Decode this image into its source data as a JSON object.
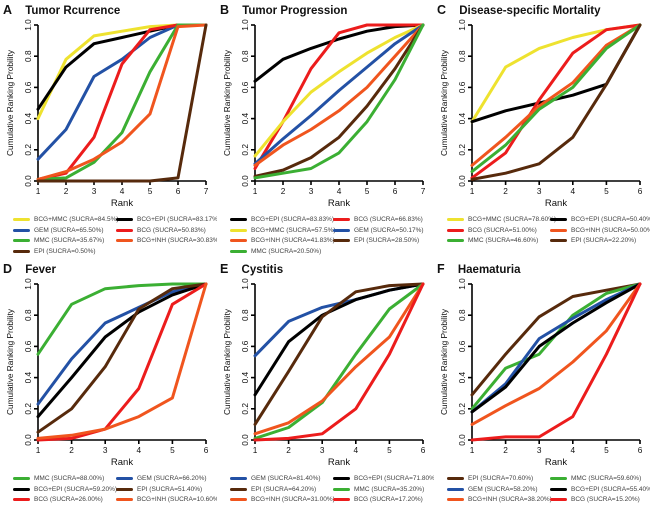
{
  "figure": {
    "ylabel": "Cumulative Ranking Probility",
    "xlabel": "Rank",
    "yticks": [
      "0.0",
      "0.2",
      "0.4",
      "0.6",
      "0.8",
      "1.0"
    ],
    "background": "#ffffff",
    "axis_color": "#000000"
  },
  "colors": {
    "yellow": "#EEE22F",
    "black": "#000000",
    "blue": "#2351A5",
    "red": "#EC1C1C",
    "green": "#3BAF33",
    "orange": "#F0551E",
    "brown": "#572A0C"
  },
  "chart_data": [
    {
      "type": "line",
      "letter": "A",
      "title": "Tumor Rcurrence",
      "xlabel": "Rank",
      "ylabel": "Cumulative Ranking Probility",
      "x": [
        1,
        2,
        3,
        4,
        5,
        6,
        7
      ],
      "ylim": [
        0,
        1
      ],
      "legend_position": "below",
      "series": [
        {
          "name": "BCG+MMC",
          "legend": "BCG+MMC (SUCRA=84.5%)",
          "color": "#EEE22F",
          "values": [
            0.4,
            0.78,
            0.93,
            0.96,
            0.99,
            1.0,
            1.0
          ]
        },
        {
          "name": "BCG+EPI",
          "legend": "BCG+EPI (SUCRA=83.17%)",
          "color": "#000000",
          "values": [
            0.46,
            0.73,
            0.88,
            0.92,
            0.96,
            1.0,
            1.0
          ]
        },
        {
          "name": "GEM",
          "legend": "GEM (SUCRA=65.50%)",
          "color": "#2351A5",
          "values": [
            0.14,
            0.33,
            0.67,
            0.78,
            0.92,
            1.0,
            1.0
          ]
        },
        {
          "name": "BCG",
          "legend": "BCG (SUCRA=50.83%)",
          "color": "#EC1C1C",
          "values": [
            0.01,
            0.05,
            0.28,
            0.75,
            0.97,
            1.0,
            1.0
          ]
        },
        {
          "name": "MMC",
          "legend": "MMC (SUCRA=35.67%)",
          "color": "#3BAF33",
          "values": [
            0.01,
            0.02,
            0.12,
            0.31,
            0.7,
            1.0,
            1.0
          ]
        },
        {
          "name": "BCG+INH",
          "legend": "BCG+INH (SUCRA=30.83%)",
          "color": "#F0551E",
          "values": [
            0.01,
            0.06,
            0.14,
            0.25,
            0.43,
            0.99,
            1.0
          ]
        },
        {
          "name": "EPI",
          "legend": "EPI (SUCRA=0.50%)",
          "color": "#572A0C",
          "values": [
            0.0,
            0.0,
            0.0,
            0.0,
            0.0,
            0.02,
            1.0
          ]
        }
      ]
    },
    {
      "type": "line",
      "letter": "B",
      "title": "Tumor Progression",
      "xlabel": "Rank",
      "ylabel": "Cumulative Ranking Probility",
      "x": [
        1,
        2,
        3,
        4,
        5,
        6,
        7
      ],
      "ylim": [
        0,
        1
      ],
      "legend_position": "below",
      "series": [
        {
          "name": "BCG+EPI",
          "legend": "BCG+EPI (SUCRA=83.83%)",
          "color": "#000000",
          "values": [
            0.64,
            0.78,
            0.85,
            0.91,
            0.96,
            0.99,
            1.0
          ]
        },
        {
          "name": "BCG",
          "legend": "BCG (SUCRA=66.83%)",
          "color": "#EC1C1C",
          "values": [
            0.08,
            0.38,
            0.72,
            0.95,
            1.0,
            1.0,
            1.0
          ]
        },
        {
          "name": "BCG+MMC",
          "legend": "BCG+MMC (SUCRA=57.5%)",
          "color": "#EEE22F",
          "values": [
            0.16,
            0.38,
            0.57,
            0.7,
            0.82,
            0.92,
            1.0
          ]
        },
        {
          "name": "GEM",
          "legend": "GEM (SUCRA=50.17%)",
          "color": "#2351A5",
          "values": [
            0.11,
            0.27,
            0.42,
            0.58,
            0.73,
            0.88,
            1.0
          ]
        },
        {
          "name": "BCG+INH",
          "legend": "BCG+INH (SUCRA=41.83%)",
          "color": "#F0551E",
          "values": [
            0.1,
            0.23,
            0.33,
            0.45,
            0.6,
            0.8,
            1.0
          ]
        },
        {
          "name": "EPI",
          "legend": "EPI (SUCRA=28.50%)",
          "color": "#572A0C",
          "values": [
            0.03,
            0.07,
            0.15,
            0.28,
            0.48,
            0.72,
            1.0
          ]
        },
        {
          "name": "MMC",
          "legend": "MMC (SUCRA=20.50%)",
          "color": "#3BAF33",
          "values": [
            0.02,
            0.05,
            0.08,
            0.18,
            0.38,
            0.65,
            1.0
          ]
        }
      ]
    },
    {
      "type": "line",
      "letter": "C",
      "title": "Disease-specific Mortality",
      "xlabel": "Rank",
      "ylabel": "Cumulative Ranking Probility",
      "x": [
        1,
        2,
        3,
        4,
        5,
        6
      ],
      "ylim": [
        0,
        1
      ],
      "legend_position": "below",
      "series": [
        {
          "name": "BCG+MMC",
          "legend": "BCG+MMC (SUCRA=78.60%)",
          "color": "#EEE22F",
          "values": [
            0.38,
            0.73,
            0.85,
            0.92,
            0.97,
            1.0
          ]
        },
        {
          "name": "BCG+EPI",
          "legend": "BCG+EPI (SUCRA=50.40%)",
          "color": "#000000",
          "values": [
            0.38,
            0.45,
            0.5,
            0.55,
            0.62,
            1.0
          ]
        },
        {
          "name": "BCG",
          "legend": "BCG (SUCRA=51.00%)",
          "color": "#EC1C1C",
          "values": [
            0.02,
            0.18,
            0.52,
            0.82,
            0.97,
            1.0
          ]
        },
        {
          "name": "BCG+INH",
          "legend": "BCG+INH (SUCRA=50.00%)",
          "color": "#F0551E",
          "values": [
            0.1,
            0.28,
            0.48,
            0.63,
            0.87,
            1.0
          ]
        },
        {
          "name": "MMC",
          "legend": "MMC (SUCRA=46.60%)",
          "color": "#3BAF33",
          "values": [
            0.06,
            0.23,
            0.46,
            0.6,
            0.85,
            1.0
          ]
        },
        {
          "name": "EPI",
          "legend": "EPI (SUCRA=22.20%)",
          "color": "#572A0C",
          "values": [
            0.01,
            0.05,
            0.11,
            0.28,
            0.62,
            1.0
          ]
        }
      ]
    },
    {
      "type": "line",
      "letter": "D",
      "title": "Fever",
      "xlabel": "Rank",
      "ylabel": "Cumulative Ranking Probility",
      "x": [
        1,
        2,
        3,
        4,
        5,
        6
      ],
      "ylim": [
        0,
        1
      ],
      "legend_position": "below",
      "series": [
        {
          "name": "MMC",
          "legend": "MMC (SUCRA=88.00%)",
          "color": "#3BAF33",
          "values": [
            0.55,
            0.87,
            0.97,
            0.99,
            1.0,
            1.0
          ]
        },
        {
          "name": "GEM",
          "legend": "GEM (SUCRA=66.20%)",
          "color": "#2351A5",
          "values": [
            0.23,
            0.52,
            0.75,
            0.85,
            0.95,
            1.0
          ]
        },
        {
          "name": "BCG+EPI",
          "legend": "BCG+EPI (SUCRA=59.20%)",
          "color": "#000000",
          "values": [
            0.15,
            0.4,
            0.66,
            0.82,
            0.93,
            1.0
          ]
        },
        {
          "name": "EPI",
          "legend": "EPI (SUCRA=51.40%)",
          "color": "#572A0C",
          "values": [
            0.05,
            0.2,
            0.47,
            0.84,
            0.97,
            1.0
          ]
        },
        {
          "name": "BCG",
          "legend": "BCG (SUCRA=26.00%)",
          "color": "#EC1C1C",
          "values": [
            0.0,
            0.01,
            0.07,
            0.33,
            0.87,
            1.0
          ]
        },
        {
          "name": "BCG+INH",
          "legend": "BCG+INH (SUCRA=10.60%)",
          "color": "#F0551E",
          "values": [
            0.01,
            0.03,
            0.07,
            0.15,
            0.27,
            1.0
          ]
        }
      ]
    },
    {
      "type": "line",
      "letter": "E",
      "title": "Cystitis",
      "xlabel": "Rank",
      "ylabel": "Cumulative Ranking Probility",
      "x": [
        1,
        2,
        3,
        4,
        5,
        6
      ],
      "ylim": [
        0,
        1
      ],
      "legend_position": "below",
      "series": [
        {
          "name": "GEM",
          "legend": "GEM (SUCRA=81.40%)",
          "color": "#2351A5",
          "values": [
            0.54,
            0.76,
            0.85,
            0.9,
            0.96,
            1.0
          ]
        },
        {
          "name": "BCG+EPI",
          "legend": "BCG+EPI (SUCRA=71.80%)",
          "color": "#000000",
          "values": [
            0.29,
            0.63,
            0.8,
            0.9,
            0.96,
            1.0
          ]
        },
        {
          "name": "EPI",
          "legend": "EPI (SUCRA=64.20%)",
          "color": "#572A0C",
          "values": [
            0.1,
            0.44,
            0.79,
            0.95,
            0.99,
            1.0
          ]
        },
        {
          "name": "MMC",
          "legend": "MMC (SUCRA=35.20%)",
          "color": "#3BAF33",
          "values": [
            0.01,
            0.08,
            0.24,
            0.55,
            0.84,
            1.0
          ]
        },
        {
          "name": "BCG+INH",
          "legend": "BCG+INH (SUCRA=31.00%)",
          "color": "#F0551E",
          "values": [
            0.04,
            0.11,
            0.25,
            0.47,
            0.66,
            1.0
          ]
        },
        {
          "name": "BCG",
          "legend": "BCG (SUCRA=17.20%)",
          "color": "#EC1C1C",
          "values": [
            0.0,
            0.01,
            0.04,
            0.2,
            0.55,
            1.0
          ]
        }
      ]
    },
    {
      "type": "line",
      "letter": "F",
      "title": "Haematuria",
      "xlabel": "Rank",
      "ylabel": "Cumulative Ranking Probility",
      "x": [
        1,
        2,
        3,
        4,
        5,
        6
      ],
      "ylim": [
        0,
        1
      ],
      "legend_position": "below",
      "series": [
        {
          "name": "EPI",
          "legend": "EPI (SUCRA=70.60%)",
          "color": "#572A0C",
          "values": [
            0.29,
            0.55,
            0.79,
            0.92,
            0.96,
            1.0
          ]
        },
        {
          "name": "MMC",
          "legend": "MMC (SUCRA=59.60%)",
          "color": "#3BAF33",
          "values": [
            0.2,
            0.46,
            0.55,
            0.8,
            0.94,
            1.0
          ]
        },
        {
          "name": "GEM",
          "legend": "GEM (SUCRA=58.20%)",
          "color": "#2351A5",
          "values": [
            0.18,
            0.36,
            0.65,
            0.78,
            0.9,
            1.0
          ]
        },
        {
          "name": "BCG+EPI",
          "legend": "BCG+EPI (SUCRA=55.40%)",
          "color": "#000000",
          "values": [
            0.18,
            0.34,
            0.6,
            0.75,
            0.88,
            1.0
          ]
        },
        {
          "name": "BCG+INH",
          "legend": "BCG+INH (SUCRA=38.20%)",
          "color": "#F0551E",
          "values": [
            0.1,
            0.22,
            0.33,
            0.5,
            0.7,
            1.0
          ]
        },
        {
          "name": "BCG",
          "legend": "BCG (SUCRA=15.20%)",
          "color": "#EC1C1C",
          "values": [
            0.0,
            0.02,
            0.02,
            0.15,
            0.55,
            1.0
          ]
        }
      ]
    }
  ]
}
